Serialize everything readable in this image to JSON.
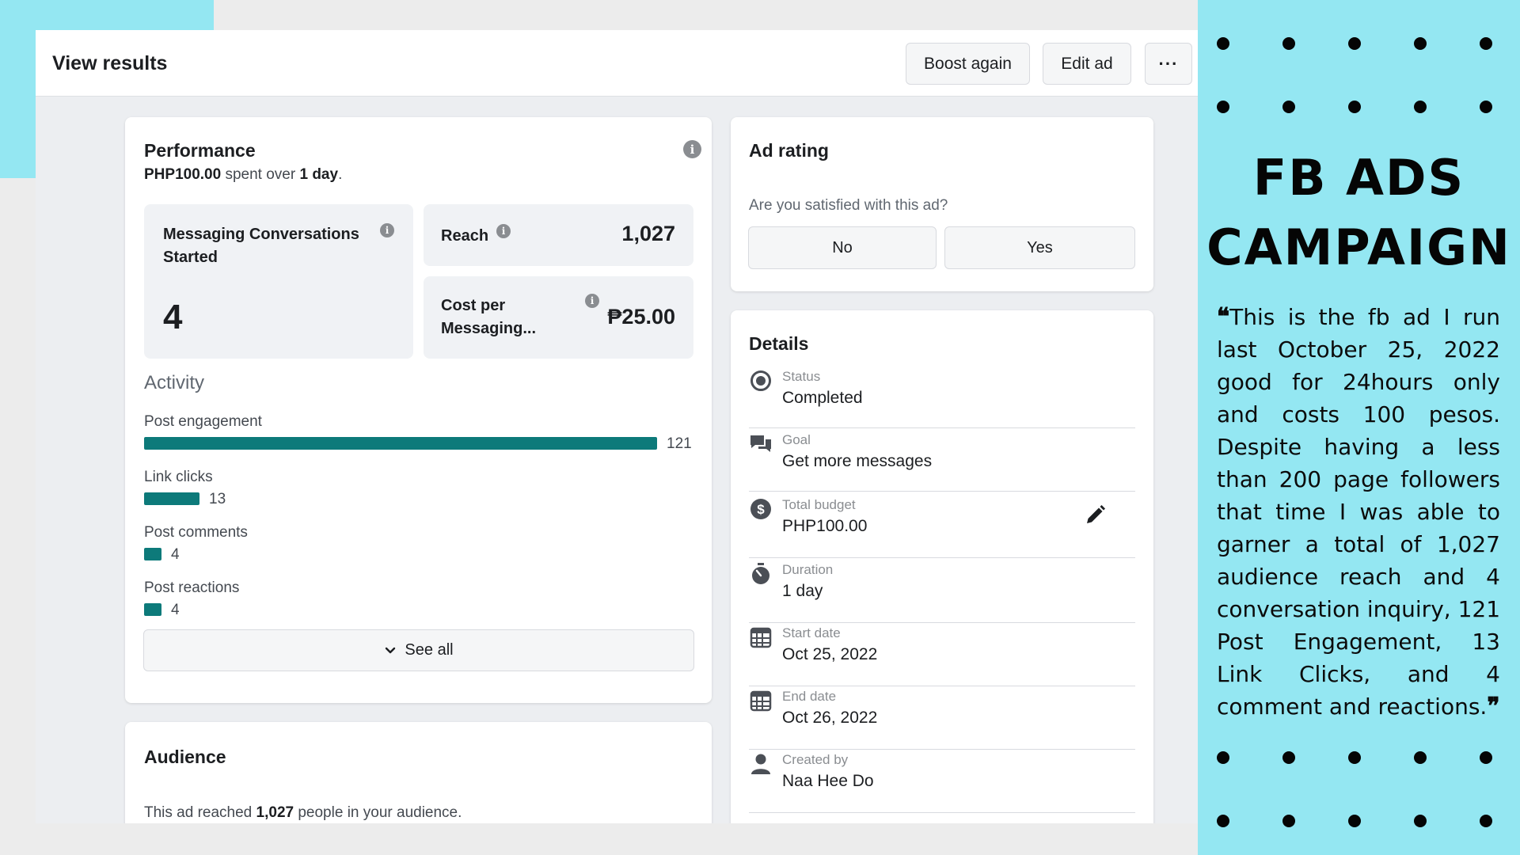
{
  "topbar": {
    "title": "View results",
    "boost_label": "Boost again",
    "edit_label": "Edit ad",
    "more_label": "···"
  },
  "performance": {
    "title": "Performance",
    "spent_amount": "PHP100.00",
    "spent_mid": " spent over ",
    "spent_duration": "1 day",
    "spent_end": ".",
    "info_glyph": "i",
    "messaging_label": "Messaging Conversations Started",
    "messaging_value": "4",
    "reach_label": "Reach",
    "reach_value": "1,027",
    "cost_label_1": "Cost per",
    "cost_label_2": "Messaging...",
    "cost_value": "₱25.00",
    "activity_title": "Activity",
    "activity": [
      {
        "label": "Post engagement",
        "value": "121",
        "count": 121
      },
      {
        "label": "Link clicks",
        "value": "13",
        "count": 13
      },
      {
        "label": "Post comments",
        "value": "4",
        "count": 4
      },
      {
        "label": "Post reactions",
        "value": "4",
        "count": 4
      }
    ],
    "see_all_label": "See all"
  },
  "ad_rating": {
    "title": "Ad rating",
    "question": "Are you satisfied with this ad?",
    "no_label": "No",
    "yes_label": "Yes"
  },
  "details": {
    "title": "Details",
    "rows": [
      {
        "label": "Status",
        "value": "Completed",
        "icon": "status-icon"
      },
      {
        "label": "Goal",
        "value": "Get more messages",
        "icon": "chat-icon"
      },
      {
        "label": "Total budget",
        "value": "PHP100.00",
        "icon": "dollar-icon"
      },
      {
        "label": "Duration",
        "value": "1 day",
        "icon": "stopwatch-icon"
      },
      {
        "label": "Start date",
        "value": "Oct 25, 2022",
        "icon": "calendar-icon"
      },
      {
        "label": "End date",
        "value": "Oct 26, 2022",
        "icon": "calendar-icon"
      },
      {
        "label": "Created by",
        "value": "Naa Hee Do",
        "icon": "person-icon"
      }
    ]
  },
  "audience": {
    "title": "Audience",
    "text_start": "This ad reached ",
    "text_count": "1,027",
    "text_end": " people in your audience."
  },
  "side": {
    "title_line1": "FB ADS",
    "title_line2": "CAMPAIGN",
    "open_quote": "❝",
    "quote": "This is the fb ad I run last October 25, 2022 good for 24hours only and costs 100 pesos. Despite having a less than 200 page followers that time I was able to garner a total of 1,027 audience reach and 4 conversation inquiry, 121 Post Engagement, 13 Link Clicks, and 4 comment and reactions.",
    "close_quote": "❞"
  },
  "colors": {
    "accent_bar": "#0d7a7a",
    "side_bg": "#94e7f2",
    "page_bg": "#eceef1"
  }
}
